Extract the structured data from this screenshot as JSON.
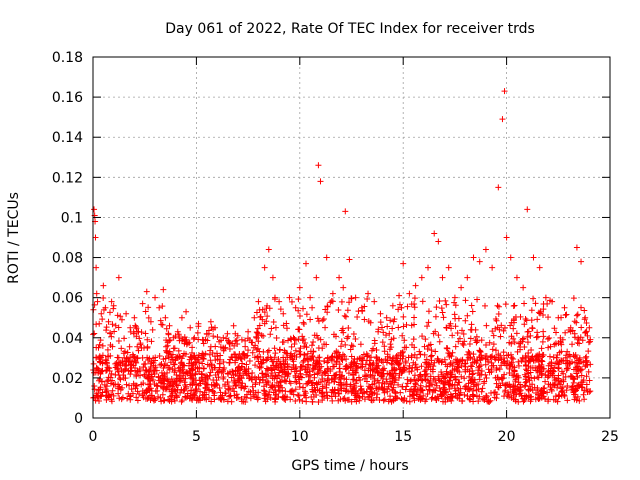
{
  "chart_data": {
    "type": "scatter",
    "title": "Day 061 of 2022, Rate Of TEC Index for receiver trds",
    "xlabel": "GPS time / hours",
    "ylabel": "ROTI / TECUs",
    "xlim": [
      0,
      25
    ],
    "ylim": [
      0,
      0.18
    ],
    "x_ticks": [
      0,
      5,
      10,
      15,
      20,
      25
    ],
    "x_tick_labels": [
      "0",
      "5",
      "10",
      "15",
      "20",
      "25"
    ],
    "y_ticks": [
      0,
      0.02,
      0.04,
      0.06,
      0.08,
      0.1,
      0.12,
      0.14,
      0.16,
      0.18
    ],
    "y_tick_labels": [
      "0",
      "0.02",
      "0.04",
      "0.06",
      "0.08",
      "0.1",
      "0.12",
      "0.14",
      "0.16",
      "0.18"
    ],
    "grid": true,
    "marker": "+",
    "marker_color": "#ff0000",
    "series": [
      {
        "name": "ROTI",
        "color": "#ff0000",
        "x": [
          0.02,
          0.05,
          0.08,
          0.1,
          0.12,
          0.15,
          0.18,
          0.22,
          0.3,
          0.4,
          0.5,
          0.6,
          0.75,
          0.9,
          1.0,
          1.1,
          1.25,
          1.4,
          1.6,
          1.8,
          2.0,
          2.2,
          2.4,
          2.6,
          2.8,
          3.0,
          3.2,
          3.4,
          3.5,
          3.7,
          3.9,
          4.1,
          4.3,
          4.5,
          4.7,
          4.9,
          5.1,
          5.3,
          5.5,
          5.7,
          5.9,
          6.1,
          6.3,
          6.5,
          6.8,
          7.0,
          7.2,
          7.5,
          7.8,
          8.0,
          8.3,
          8.5,
          8.7,
          8.8,
          9.0,
          9.2,
          9.5,
          9.8,
          10.0,
          10.3,
          10.5,
          10.8,
          10.9,
          11.0,
          11.3,
          11.6,
          11.9,
          12.1,
          12.2,
          12.4,
          12.7,
          13.0,
          13.3,
          13.6,
          13.9,
          14.2,
          14.5,
          14.8,
          15.0,
          15.3,
          15.6,
          15.9,
          16.2,
          16.5,
          16.7,
          16.9,
          17.2,
          17.5,
          17.8,
          18.1,
          18.4,
          18.7,
          19.0,
          19.3,
          19.6,
          19.8,
          19.9,
          20.0,
          20.2,
          20.5,
          20.8,
          21.0,
          21.3,
          21.6,
          21.9,
          22.2,
          22.5,
          22.8,
          23.1,
          23.4,
          23.6,
          23.8,
          24.0
        ],
        "y": [
          0.054,
          0.104,
          0.101,
          0.098,
          0.09,
          0.075,
          0.062,
          0.058,
          0.047,
          0.052,
          0.066,
          0.055,
          0.048,
          0.058,
          0.056,
          0.046,
          0.07,
          0.049,
          0.052,
          0.045,
          0.05,
          0.043,
          0.057,
          0.063,
          0.048,
          0.06,
          0.055,
          0.064,
          0.05,
          0.046,
          0.04,
          0.043,
          0.05,
          0.053,
          0.045,
          0.04,
          0.047,
          0.039,
          0.042,
          0.048,
          0.045,
          0.038,
          0.04,
          0.042,
          0.046,
          0.041,
          0.039,
          0.043,
          0.05,
          0.058,
          0.075,
          0.084,
          0.07,
          0.06,
          0.058,
          0.052,
          0.06,
          0.055,
          0.065,
          0.077,
          0.06,
          0.07,
          0.126,
          0.118,
          0.08,
          0.062,
          0.07,
          0.065,
          0.103,
          0.079,
          0.06,
          0.055,
          0.062,
          0.058,
          0.052,
          0.05,
          0.056,
          0.061,
          0.077,
          0.062,
          0.066,
          0.07,
          0.075,
          0.092,
          0.088,
          0.07,
          0.075,
          0.06,
          0.065,
          0.07,
          0.08,
          0.078,
          0.084,
          0.075,
          0.115,
          0.149,
          0.163,
          0.09,
          0.08,
          0.07,
          0.065,
          0.104,
          0.08,
          0.075,
          0.06,
          0.058,
          0.05,
          0.055,
          0.045,
          0.085,
          0.078,
          0.05,
          0.045
        ],
        "background_band": {
          "y_low": 0.008,
          "y_high": 0.03
        }
      }
    ]
  }
}
